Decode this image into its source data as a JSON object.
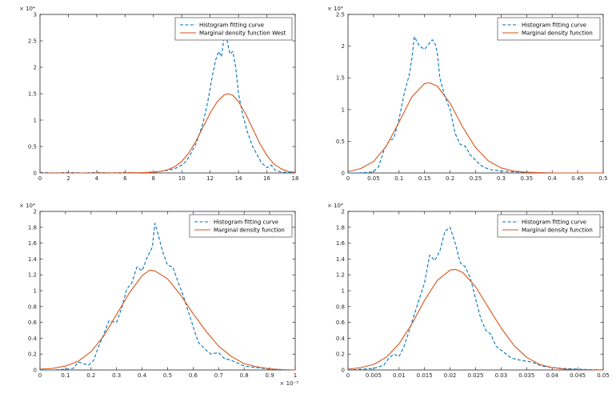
{
  "figure": {
    "background": "#ffffff",
    "axis_color": "#262626",
    "legend_border_color": "#4d4d4d",
    "tick_font_size": 7,
    "legend_font_size": 7
  },
  "chart_data": [
    {
      "id": "top-left",
      "type": "line",
      "title": "",
      "xlabel": "",
      "ylabel": "",
      "grid": false,
      "legend_position": "top-right",
      "xlim": [
        0,
        18
      ],
      "ylim": [
        0,
        3
      ],
      "xticks": [
        0,
        2,
        4,
        6,
        8,
        10,
        12,
        14,
        16,
        18
      ],
      "xtick_labels": [
        "0",
        "2",
        "4",
        "6",
        "8",
        "10",
        "12",
        "14",
        "16",
        "18"
      ],
      "yticks": [
        0,
        0.5,
        1,
        1.5,
        2,
        2.5,
        3
      ],
      "ytick_labels": [
        "0",
        "0.5",
        "1",
        "1.5",
        "2",
        "2.5",
        "3"
      ],
      "y_scale_label": "× 10⁴",
      "x_scale_label": "",
      "series": [
        {
          "name": "Histogram fitting curve",
          "color": "#0072BD",
          "style": "dashed",
          "x": [
            0,
            1,
            2,
            3,
            4,
            5,
            6,
            7,
            8,
            8.5,
            9,
            9.5,
            10,
            10.3,
            10.6,
            11,
            11.2,
            11.5,
            11.8,
            12,
            12.2,
            12.4,
            12.6,
            12.8,
            13,
            13.2,
            13.4,
            13.6,
            13.8,
            14,
            14.3,
            14.6,
            15,
            15.3,
            15.6,
            16,
            16.3,
            16.6,
            17,
            17.5,
            18
          ],
          "y": [
            0.01,
            0,
            0.01,
            0,
            0.01,
            0,
            0.01,
            0,
            0.02,
            0.03,
            0.05,
            0.08,
            0.15,
            0.22,
            0.35,
            0.55,
            0.7,
            0.95,
            1.3,
            1.6,
            1.9,
            2.15,
            2.3,
            2.2,
            2.6,
            2.5,
            2.25,
            2.3,
            2.0,
            1.5,
            1.1,
            0.8,
            0.5,
            0.35,
            0.2,
            0.1,
            0.15,
            0.05,
            0.02,
            0.01,
            0
          ]
        },
        {
          "name": "Marginal density function West",
          "color": "#D95319",
          "style": "solid",
          "x": [
            0,
            2,
            4,
            6,
            7,
            8,
            8.5,
            9,
            9.5,
            10,
            10.5,
            11,
            11.5,
            12,
            12.5,
            13,
            13.3,
            13.6,
            14,
            14.5,
            15,
            15.5,
            16,
            16.5,
            17,
            17.5,
            18
          ],
          "y": [
            0,
            0,
            0,
            0.001,
            0.004,
            0.012,
            0.03,
            0.06,
            0.12,
            0.22,
            0.38,
            0.6,
            0.87,
            1.13,
            1.35,
            1.48,
            1.5,
            1.47,
            1.35,
            1.12,
            0.84,
            0.56,
            0.33,
            0.17,
            0.08,
            0.03,
            0.01
          ]
        }
      ]
    },
    {
      "id": "top-right",
      "type": "line",
      "title": "",
      "xlabel": "",
      "ylabel": "",
      "grid": false,
      "legend_position": "top-right",
      "xlim": [
        0,
        0.5
      ],
      "ylim": [
        0,
        2.5
      ],
      "xticks": [
        0,
        0.05,
        0.1,
        0.15,
        0.2,
        0.25,
        0.3,
        0.35,
        0.4,
        0.45,
        0.5
      ],
      "xtick_labels": [
        "0",
        "0.05",
        "0.1",
        "0.15",
        "0.2",
        "0.25",
        "0.3",
        "0.35",
        "0.4",
        "0.45",
        "0.5"
      ],
      "yticks": [
        0,
        0.5,
        1,
        1.5,
        2,
        2.5
      ],
      "ytick_labels": [
        "0",
        "0.5",
        "1",
        "1.5",
        "2",
        "2.5"
      ],
      "y_scale_label": "× 10⁴",
      "x_scale_label": "",
      "series": [
        {
          "name": "Histogram fitting curve",
          "color": "#0072BD",
          "style": "dashed",
          "x": [
            0,
            0.02,
            0.04,
            0.05,
            0.06,
            0.07,
            0.08,
            0.09,
            0.1,
            0.11,
            0.12,
            0.125,
            0.13,
            0.14,
            0.15,
            0.16,
            0.165,
            0.17,
            0.175,
            0.18,
            0.19,
            0.2,
            0.21,
            0.22,
            0.23,
            0.24,
            0.25,
            0.26,
            0.27,
            0.28,
            0.3,
            0.32,
            0.35,
            0.4,
            0.45,
            0.5
          ],
          "y": [
            0,
            0,
            0.01,
            0.02,
            0.1,
            0.35,
            0.5,
            0.55,
            0.85,
            1.25,
            1.55,
            1.8,
            2.15,
            2.0,
            1.95,
            2.05,
            2.1,
            2.05,
            1.9,
            1.5,
            1.2,
            1.0,
            0.62,
            0.45,
            0.42,
            0.28,
            0.2,
            0.12,
            0.08,
            0.05,
            0.03,
            0.02,
            0.01,
            0,
            0,
            0
          ]
        },
        {
          "name": "Marginal density function",
          "color": "#D95319",
          "style": "solid",
          "x": [
            0,
            0.025,
            0.05,
            0.075,
            0.1,
            0.125,
            0.15,
            0.16,
            0.175,
            0.2,
            0.225,
            0.25,
            0.275,
            0.3,
            0.325,
            0.35,
            0.4,
            0.45,
            0.5
          ],
          "y": [
            0.02,
            0.07,
            0.18,
            0.42,
            0.8,
            1.2,
            1.41,
            1.42,
            1.37,
            1.1,
            0.72,
            0.4,
            0.19,
            0.08,
            0.03,
            0.01,
            0,
            0,
            0
          ]
        }
      ]
    },
    {
      "id": "bottom-left",
      "type": "line",
      "title": "",
      "xlabel": "",
      "ylabel": "",
      "grid": false,
      "legend_position": "top-right",
      "xlim": [
        0,
        1
      ],
      "ylim": [
        0,
        2
      ],
      "xticks": [
        0,
        0.1,
        0.2,
        0.3,
        0.4,
        0.5,
        0.6,
        0.7,
        0.8,
        0.9,
        1
      ],
      "xtick_labels": [
        "0",
        "0.1",
        "0.2",
        "0.3",
        "0.4",
        "0.5",
        "0.6",
        "0.7",
        "0.8",
        "0.9",
        "1"
      ],
      "yticks": [
        0,
        0.2,
        0.4,
        0.6,
        0.8,
        1,
        1.2,
        1.4,
        1.6,
        1.8,
        2
      ],
      "ytick_labels": [
        "0",
        "0.2",
        "0.4",
        "0.6",
        "0.8",
        "1",
        "1.2",
        "1.4",
        "1.6",
        "1.8",
        "2"
      ],
      "y_scale_label": "× 10⁴",
      "x_scale_label": "× 10⁻³",
      "series": [
        {
          "name": "Histogram fitting curve",
          "color": "#0072BD",
          "style": "dashed",
          "x": [
            0,
            0.05,
            0.1,
            0.13,
            0.15,
            0.17,
            0.19,
            0.21,
            0.23,
            0.25,
            0.27,
            0.3,
            0.32,
            0.34,
            0.36,
            0.38,
            0.4,
            0.42,
            0.44,
            0.45,
            0.46,
            0.48,
            0.5,
            0.52,
            0.54,
            0.56,
            0.58,
            0.6,
            0.62,
            0.65,
            0.67,
            0.7,
            0.72,
            0.75,
            0.78,
            0.8,
            0.85,
            0.9,
            0.95,
            1
          ],
          "y": [
            0,
            0,
            0.01,
            0.02,
            0.1,
            0.08,
            0.06,
            0.12,
            0.3,
            0.45,
            0.62,
            0.6,
            0.78,
            1.02,
            1.1,
            1.3,
            1.25,
            1.42,
            1.55,
            1.85,
            1.75,
            1.5,
            1.32,
            1.3,
            1.12,
            0.95,
            0.75,
            0.55,
            0.35,
            0.25,
            0.2,
            0.22,
            0.15,
            0.12,
            0.08,
            0.05,
            0.03,
            0.01,
            0,
            0
          ]
        },
        {
          "name": "Marginal density function",
          "color": "#D95319",
          "style": "solid",
          "x": [
            0,
            0.05,
            0.1,
            0.15,
            0.2,
            0.25,
            0.3,
            0.35,
            0.4,
            0.43,
            0.45,
            0.5,
            0.55,
            0.6,
            0.65,
            0.7,
            0.75,
            0.8,
            0.85,
            0.9,
            0.95,
            1
          ],
          "y": [
            0.01,
            0.02,
            0.05,
            0.11,
            0.23,
            0.43,
            0.7,
            0.97,
            1.19,
            1.26,
            1.25,
            1.15,
            0.95,
            0.71,
            0.49,
            0.3,
            0.17,
            0.08,
            0.04,
            0.015,
            0.005,
            0
          ]
        }
      ]
    },
    {
      "id": "bottom-right",
      "type": "line",
      "title": "",
      "xlabel": "",
      "ylabel": "",
      "grid": false,
      "legend_position": "top-right",
      "xlim": [
        0,
        0.05
      ],
      "ylim": [
        0,
        2
      ],
      "xticks": [
        0,
        0.005,
        0.01,
        0.015,
        0.02,
        0.025,
        0.03,
        0.035,
        0.04,
        0.045,
        0.05
      ],
      "xtick_labels": [
        "0",
        "0.005",
        "0.01",
        "0.015",
        "0.02",
        "0.025",
        "0.03",
        "0.035",
        "0.04",
        "0.045",
        "0.05"
      ],
      "yticks": [
        0,
        0.2,
        0.4,
        0.6,
        0.8,
        1,
        1.2,
        1.4,
        1.6,
        1.8,
        2
      ],
      "ytick_labels": [
        "0",
        "0.2",
        "0.4",
        "0.6",
        "0.8",
        "1",
        "1.2",
        "1.4",
        "1.6",
        "1.8",
        "2"
      ],
      "y_scale_label": "× 10⁴",
      "x_scale_label": "",
      "series": [
        {
          "name": "Histogram fitting curve",
          "color": "#0072BD",
          "style": "dashed",
          "x": [
            0,
            0.003,
            0.005,
            0.007,
            0.008,
            0.009,
            0.01,
            0.011,
            0.012,
            0.013,
            0.014,
            0.015,
            0.016,
            0.017,
            0.018,
            0.019,
            0.02,
            0.021,
            0.022,
            0.023,
            0.024,
            0.025,
            0.026,
            0.027,
            0.028,
            0.029,
            0.03,
            0.032,
            0.034,
            0.036,
            0.038,
            0.04,
            0.042,
            0.045,
            0.05
          ],
          "y": [
            0,
            0.01,
            0.02,
            0.06,
            0.15,
            0.2,
            0.17,
            0.3,
            0.5,
            0.7,
            0.9,
            1.1,
            1.45,
            1.38,
            1.5,
            1.75,
            1.8,
            1.6,
            1.35,
            1.3,
            1.15,
            0.9,
            0.65,
            0.5,
            0.45,
            0.3,
            0.25,
            0.15,
            0.12,
            0.1,
            0.05,
            0.03,
            0.02,
            0.01,
            0
          ]
        },
        {
          "name": "Marginal density function",
          "color": "#D95319",
          "style": "solid",
          "x": [
            0,
            0.0025,
            0.005,
            0.0075,
            0.01,
            0.0125,
            0.015,
            0.0175,
            0.02,
            0.021,
            0.0225,
            0.025,
            0.0275,
            0.03,
            0.0325,
            0.035,
            0.0375,
            0.04,
            0.0425,
            0.045,
            0.05
          ],
          "y": [
            0.01,
            0.03,
            0.07,
            0.16,
            0.33,
            0.58,
            0.88,
            1.13,
            1.26,
            1.27,
            1.23,
            1.05,
            0.79,
            0.53,
            0.31,
            0.16,
            0.07,
            0.03,
            0.01,
            0.005,
            0
          ]
        }
      ]
    }
  ]
}
